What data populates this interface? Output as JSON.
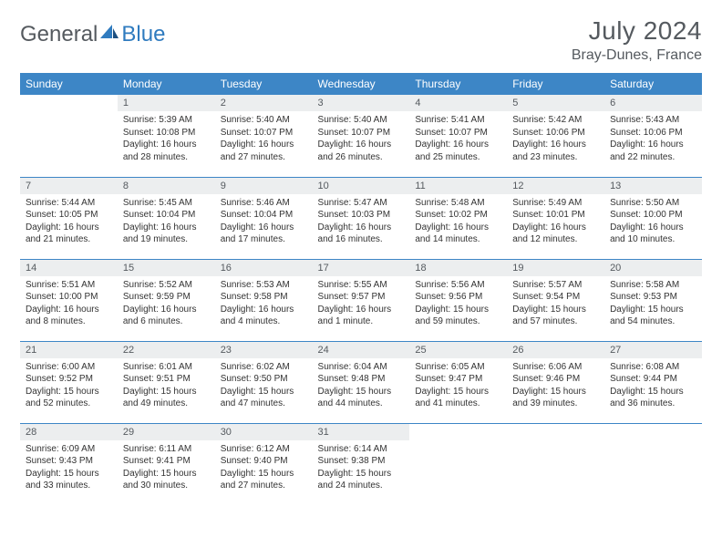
{
  "logo": {
    "word1": "General",
    "word2": "Blue"
  },
  "title": "July 2024",
  "location": "Bray-Dunes, France",
  "colors": {
    "header_bg": "#3d86c6",
    "header_text": "#ffffff",
    "daynum_bg": "#eceeef",
    "text": "#555a5f",
    "body_text": "#333333",
    "rule": "#3d86c6"
  },
  "day_labels": [
    "Sunday",
    "Monday",
    "Tuesday",
    "Wednesday",
    "Thursday",
    "Friday",
    "Saturday"
  ],
  "weeks": [
    [
      null,
      {
        "n": "1",
        "sr": "5:39 AM",
        "ss": "10:08 PM",
        "dl": "16 hours and 28 minutes."
      },
      {
        "n": "2",
        "sr": "5:40 AM",
        "ss": "10:07 PM",
        "dl": "16 hours and 27 minutes."
      },
      {
        "n": "3",
        "sr": "5:40 AM",
        "ss": "10:07 PM",
        "dl": "16 hours and 26 minutes."
      },
      {
        "n": "4",
        "sr": "5:41 AM",
        "ss": "10:07 PM",
        "dl": "16 hours and 25 minutes."
      },
      {
        "n": "5",
        "sr": "5:42 AM",
        "ss": "10:06 PM",
        "dl": "16 hours and 23 minutes."
      },
      {
        "n": "6",
        "sr": "5:43 AM",
        "ss": "10:06 PM",
        "dl": "16 hours and 22 minutes."
      }
    ],
    [
      {
        "n": "7",
        "sr": "5:44 AM",
        "ss": "10:05 PM",
        "dl": "16 hours and 21 minutes."
      },
      {
        "n": "8",
        "sr": "5:45 AM",
        "ss": "10:04 PM",
        "dl": "16 hours and 19 minutes."
      },
      {
        "n": "9",
        "sr": "5:46 AM",
        "ss": "10:04 PM",
        "dl": "16 hours and 17 minutes."
      },
      {
        "n": "10",
        "sr": "5:47 AM",
        "ss": "10:03 PM",
        "dl": "16 hours and 16 minutes."
      },
      {
        "n": "11",
        "sr": "5:48 AM",
        "ss": "10:02 PM",
        "dl": "16 hours and 14 minutes."
      },
      {
        "n": "12",
        "sr": "5:49 AM",
        "ss": "10:01 PM",
        "dl": "16 hours and 12 minutes."
      },
      {
        "n": "13",
        "sr": "5:50 AM",
        "ss": "10:00 PM",
        "dl": "16 hours and 10 minutes."
      }
    ],
    [
      {
        "n": "14",
        "sr": "5:51 AM",
        "ss": "10:00 PM",
        "dl": "16 hours and 8 minutes."
      },
      {
        "n": "15",
        "sr": "5:52 AM",
        "ss": "9:59 PM",
        "dl": "16 hours and 6 minutes."
      },
      {
        "n": "16",
        "sr": "5:53 AM",
        "ss": "9:58 PM",
        "dl": "16 hours and 4 minutes."
      },
      {
        "n": "17",
        "sr": "5:55 AM",
        "ss": "9:57 PM",
        "dl": "16 hours and 1 minute."
      },
      {
        "n": "18",
        "sr": "5:56 AM",
        "ss": "9:56 PM",
        "dl": "15 hours and 59 minutes."
      },
      {
        "n": "19",
        "sr": "5:57 AM",
        "ss": "9:54 PM",
        "dl": "15 hours and 57 minutes."
      },
      {
        "n": "20",
        "sr": "5:58 AM",
        "ss": "9:53 PM",
        "dl": "15 hours and 54 minutes."
      }
    ],
    [
      {
        "n": "21",
        "sr": "6:00 AM",
        "ss": "9:52 PM",
        "dl": "15 hours and 52 minutes."
      },
      {
        "n": "22",
        "sr": "6:01 AM",
        "ss": "9:51 PM",
        "dl": "15 hours and 49 minutes."
      },
      {
        "n": "23",
        "sr": "6:02 AM",
        "ss": "9:50 PM",
        "dl": "15 hours and 47 minutes."
      },
      {
        "n": "24",
        "sr": "6:04 AM",
        "ss": "9:48 PM",
        "dl": "15 hours and 44 minutes."
      },
      {
        "n": "25",
        "sr": "6:05 AM",
        "ss": "9:47 PM",
        "dl": "15 hours and 41 minutes."
      },
      {
        "n": "26",
        "sr": "6:06 AM",
        "ss": "9:46 PM",
        "dl": "15 hours and 39 minutes."
      },
      {
        "n": "27",
        "sr": "6:08 AM",
        "ss": "9:44 PM",
        "dl": "15 hours and 36 minutes."
      }
    ],
    [
      {
        "n": "28",
        "sr": "6:09 AM",
        "ss": "9:43 PM",
        "dl": "15 hours and 33 minutes."
      },
      {
        "n": "29",
        "sr": "6:11 AM",
        "ss": "9:41 PM",
        "dl": "15 hours and 30 minutes."
      },
      {
        "n": "30",
        "sr": "6:12 AM",
        "ss": "9:40 PM",
        "dl": "15 hours and 27 minutes."
      },
      {
        "n": "31",
        "sr": "6:14 AM",
        "ss": "9:38 PM",
        "dl": "15 hours and 24 minutes."
      },
      null,
      null,
      null
    ]
  ],
  "labels": {
    "sunrise": "Sunrise:",
    "sunset": "Sunset:",
    "daylight": "Daylight:"
  }
}
